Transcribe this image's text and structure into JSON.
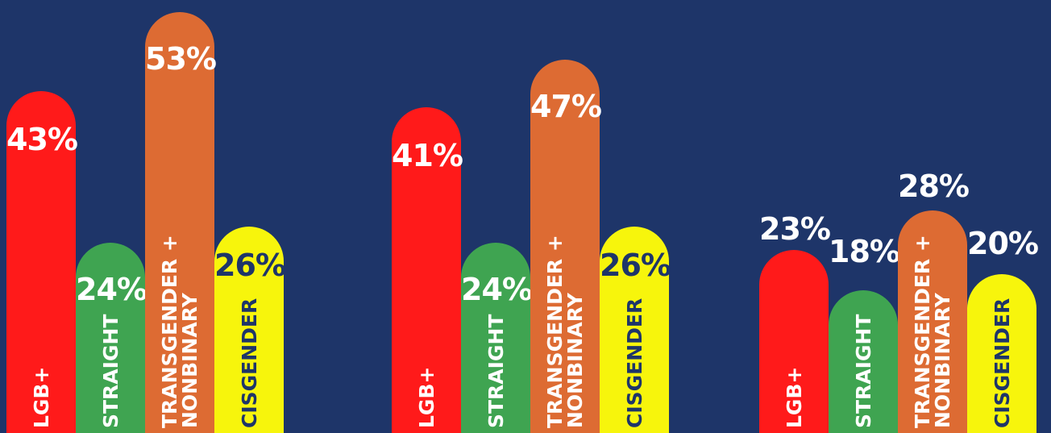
{
  "colors": {
    "background": "#1e3569",
    "lgb": "#ff1a1a",
    "straight": "#3fa451",
    "trans": "#dd6b33",
    "cis": "#f7f50c"
  },
  "chart_data": [
    {
      "type": "bar",
      "categories": [
        "LGB+",
        "STRAIGHT",
        "TRANSGENDER +\nNONBINARY",
        "CISGENDER"
      ],
      "values": [
        43,
        24,
        53,
        26
      ],
      "labels": [
        "43%",
        "24%",
        "53%",
        "26%"
      ],
      "ylim": [
        0,
        60
      ],
      "grid": false
    },
    {
      "type": "bar",
      "categories": [
        "LGB+",
        "STRAIGHT",
        "TRANSGENDER +\nNONBINARY",
        "CISGENDER"
      ],
      "values": [
        41,
        24,
        47,
        26
      ],
      "labels": [
        "41%",
        "24%",
        "47%",
        "26%"
      ],
      "ylim": [
        0,
        60
      ],
      "grid": false
    },
    {
      "type": "bar",
      "categories": [
        "LGB+",
        "STRAIGHT",
        "TRANSGENDER +\nNONBINARY",
        "CISGENDER"
      ],
      "values": [
        23,
        18,
        28,
        20
      ],
      "labels": [
        "23%",
        "18%",
        "28%",
        "20%"
      ],
      "ylim": [
        0,
        60
      ],
      "grid": false
    }
  ]
}
